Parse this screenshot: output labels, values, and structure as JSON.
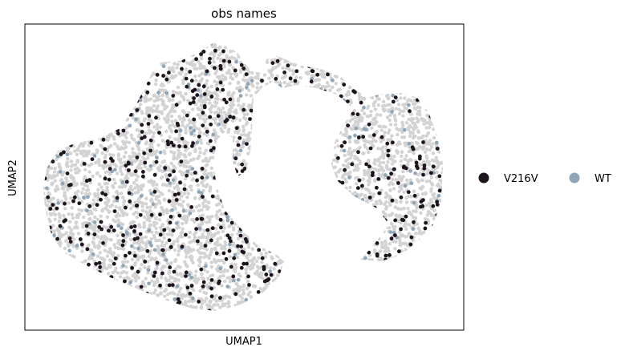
{
  "chart_data": {
    "type": "scatter",
    "title": "obs names",
    "xlabel": "UMAP1",
    "ylabel": "UMAP2",
    "xticks": [],
    "yticks": [],
    "grid": false,
    "legend": {
      "placement": "right",
      "entries": [
        {
          "label": "V216V",
          "color": "#1e141e"
        },
        {
          "label": "WT",
          "color": "#8fa6b9"
        }
      ]
    },
    "background_points_color": "#d3d3d3",
    "series": [
      {
        "name": "V216V",
        "color": "#1e141e"
      },
      {
        "name": "WT",
        "color": "#8fa6b9"
      }
    ]
  }
}
